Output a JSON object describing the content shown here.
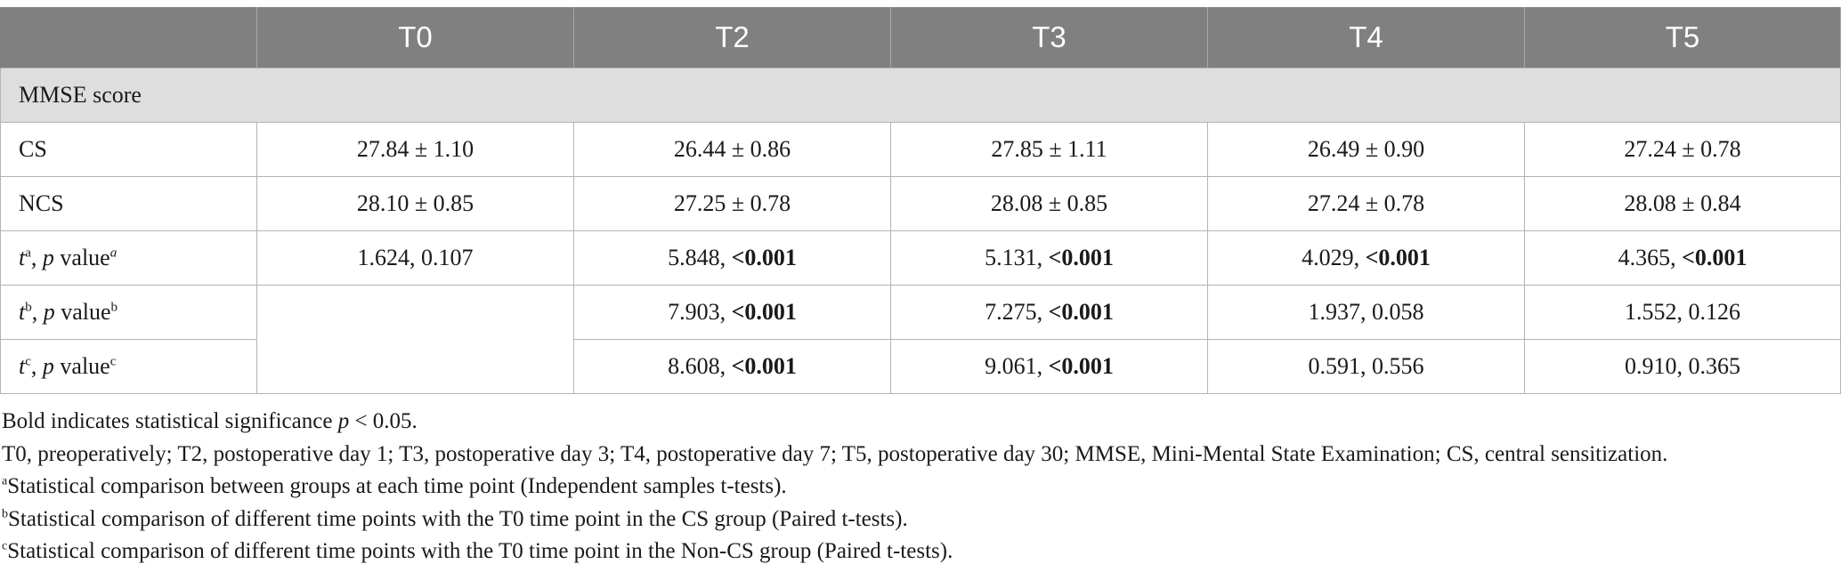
{
  "table": {
    "headers": [
      "",
      "T0",
      "T2",
      "T3",
      "T4",
      "T5"
    ],
    "section_label": "MMSE score",
    "rows": [
      {
        "label": "CS",
        "cells": [
          "27.84 ± 1.10",
          "26.44 ± 0.86",
          "27.85 ± 1.11",
          "26.49 ± 0.90",
          "27.24 ± 0.78"
        ]
      },
      {
        "label": "NCS",
        "cells": [
          "28.10 ± 0.85",
          "27.25 ± 0.78",
          "28.08 ± 0.85",
          "27.24 ± 0.78",
          "28.08 ± 0.84"
        ]
      }
    ],
    "stat_rows": [
      {
        "t": "t",
        "t_sup": "a",
        "p": "p",
        "value_word": "value",
        "value_sup": "a",
        "cells": [
          {
            "num": "1.624, ",
            "p": "0.107",
            "bold": false
          },
          {
            "num": "5.848, ",
            "p": "<0.001",
            "bold": true
          },
          {
            "num": "5.131, ",
            "p": "<0.001",
            "bold": true
          },
          {
            "num": "4.029, ",
            "p": "<0.001",
            "bold": true
          },
          {
            "num": "4.365, ",
            "p": "<0.001",
            "bold": true
          }
        ]
      },
      {
        "t": "t",
        "t_sup": "b",
        "p": "p",
        "value_word": "value",
        "value_sup": "b",
        "cells": [
          {
            "num": "",
            "p": "",
            "bold": false
          },
          {
            "num": "7.903, ",
            "p": "<0.001",
            "bold": true
          },
          {
            "num": "7.275, ",
            "p": "<0.001",
            "bold": true
          },
          {
            "num": "1.937, ",
            "p": "0.058",
            "bold": false
          },
          {
            "num": "1.552, ",
            "p": "0.126",
            "bold": false
          }
        ]
      },
      {
        "t": "t",
        "t_sup": "c",
        "p": "p",
        "value_word": "value",
        "value_sup": "c",
        "cells": [
          {
            "num": "",
            "p": "",
            "bold": false
          },
          {
            "num": "8.608, ",
            "p": "<0.001",
            "bold": true
          },
          {
            "num": "9.061, ",
            "p": "<0.001",
            "bold": true
          },
          {
            "num": "0.591, ",
            "p": "0.556",
            "bold": false
          },
          {
            "num": "0.910, ",
            "p": "0.365",
            "bold": false
          }
        ]
      }
    ]
  },
  "notes": {
    "bold_note_prefix": "Bold indicates statistical significance ",
    "bold_note_p": "p",
    "bold_note_suffix": " < 0.05.",
    "abbrev": "T0, preoperatively; T2, postoperative day 1; T3, postoperative day 3; T4, postoperative day 7; T5, postoperative day 30; MMSE, Mini-Mental State Examination; CS, central sensitization.",
    "footnotes": [
      {
        "mark": "a",
        "text": "Statistical comparison between groups at each time point (Independent samples t-tests)."
      },
      {
        "mark": "b",
        "text": "Statistical comparison of different time points with the T0 time point in the CS group (Paired t-tests)."
      },
      {
        "mark": "c",
        "text": "Statistical comparison of different time points with the T0 time point in the Non-CS group (Paired t-tests)."
      }
    ]
  }
}
